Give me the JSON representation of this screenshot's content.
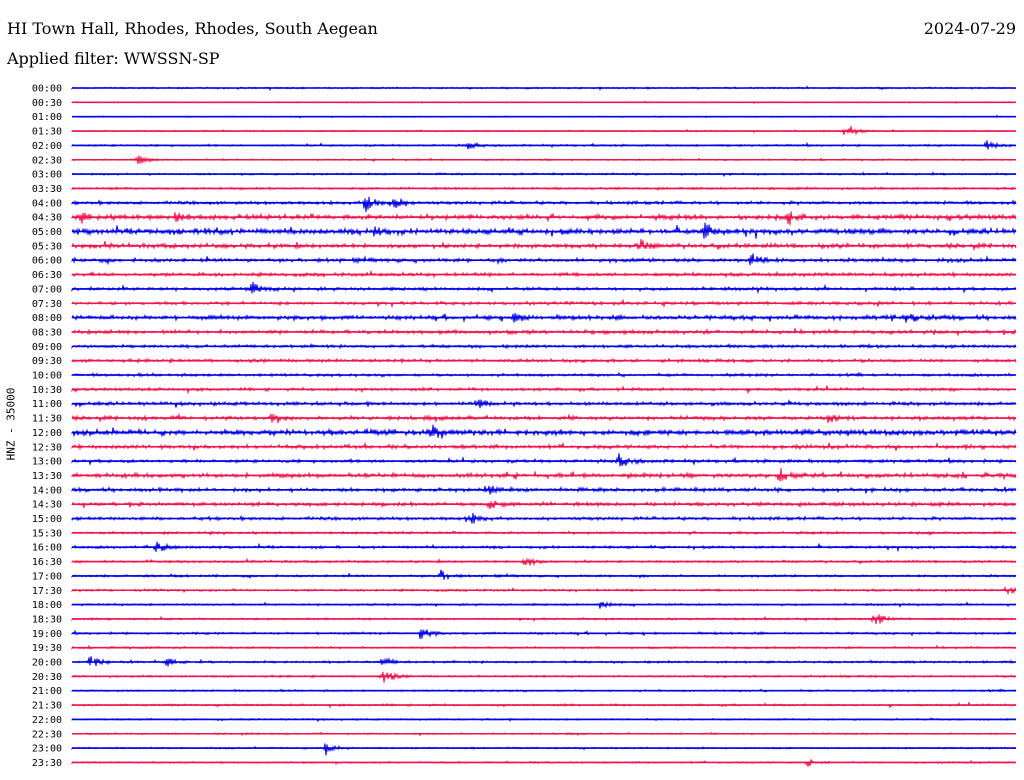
{
  "header": {
    "station": "HI Town Hall, Rhodes, Rhodes, South Aegean",
    "date": "2024-07-29",
    "filter": "Applied filter: WWSSN-SP"
  },
  "colors": {
    "a": "#0000e6",
    "b": "#f0144b"
  },
  "chart_data": {
    "type": "line",
    "ylabel": "HNZ - 35000",
    "row_labels": [
      "00:00",
      "00:30",
      "01:00",
      "01:30",
      "02:00",
      "02:30",
      "03:00",
      "03:30",
      "04:00",
      "04:30",
      "05:00",
      "05:30",
      "06:00",
      "06:30",
      "07:00",
      "07:30",
      "08:00",
      "08:30",
      "09:00",
      "09:30",
      "10:00",
      "10:30",
      "11:00",
      "11:30",
      "12:00",
      "12:30",
      "13:00",
      "13:30",
      "14:00",
      "14:30",
      "15:00",
      "15:30",
      "16:00",
      "16:30",
      "17:00",
      "17:30",
      "18:00",
      "18:30",
      "19:00",
      "19:30",
      "20:00",
      "20:30",
      "21:00",
      "21:30",
      "22:00",
      "22:30",
      "23:00",
      "23:30"
    ],
    "noise_level": [
      0.25,
      0.15,
      0.18,
      0.2,
      0.3,
      0.25,
      0.3,
      0.35,
      0.5,
      0.8,
      0.9,
      0.7,
      0.6,
      0.55,
      0.5,
      0.5,
      0.7,
      0.6,
      0.5,
      0.5,
      0.45,
      0.45,
      0.55,
      0.6,
      0.9,
      0.6,
      0.5,
      0.7,
      0.6,
      0.6,
      0.5,
      0.4,
      0.4,
      0.35,
      0.35,
      0.35,
      0.3,
      0.3,
      0.35,
      0.3,
      0.35,
      0.3,
      0.3,
      0.3,
      0.25,
      0.25,
      0.25,
      0.25
    ],
    "events": [
      {
        "row": 3,
        "x": 0.82,
        "amp": 9
      },
      {
        "row": 4,
        "x": 0.42,
        "amp": 4
      },
      {
        "row": 4,
        "x": 0.97,
        "amp": 6
      },
      {
        "row": 5,
        "x": 0.07,
        "amp": 5
      },
      {
        "row": 8,
        "x": 0.31,
        "amp": 11
      },
      {
        "row": 8,
        "x": 0.34,
        "amp": 9
      },
      {
        "row": 9,
        "x": 0.01,
        "amp": 5
      },
      {
        "row": 9,
        "x": 0.11,
        "amp": 6
      },
      {
        "row": 9,
        "x": 0.76,
        "amp": 6
      },
      {
        "row": 10,
        "x": 0.14,
        "amp": 5
      },
      {
        "row": 10,
        "x": 0.32,
        "amp": 5
      },
      {
        "row": 10,
        "x": 0.67,
        "amp": 8
      },
      {
        "row": 11,
        "x": 0.6,
        "amp": 6
      },
      {
        "row": 12,
        "x": 0.72,
        "amp": 8
      },
      {
        "row": 14,
        "x": 0.19,
        "amp": 8
      },
      {
        "row": 16,
        "x": 0.47,
        "amp": 6
      },
      {
        "row": 16,
        "x": 0.88,
        "amp": 7
      },
      {
        "row": 22,
        "x": 0.43,
        "amp": 6
      },
      {
        "row": 23,
        "x": 0.21,
        "amp": 4
      },
      {
        "row": 23,
        "x": 0.8,
        "amp": 6
      },
      {
        "row": 24,
        "x": 0.38,
        "amp": 7
      },
      {
        "row": 26,
        "x": 0.58,
        "amp": 8
      },
      {
        "row": 27,
        "x": 0.75,
        "amp": 6
      },
      {
        "row": 28,
        "x": 0.44,
        "amp": 7
      },
      {
        "row": 29,
        "x": 0.44,
        "amp": 6
      },
      {
        "row": 30,
        "x": 0.42,
        "amp": 7
      },
      {
        "row": 32,
        "x": 0.09,
        "amp": 6
      },
      {
        "row": 33,
        "x": 0.48,
        "amp": 6
      },
      {
        "row": 34,
        "x": 0.39,
        "amp": 6
      },
      {
        "row": 35,
        "x": 0.99,
        "amp": 5
      },
      {
        "row": 36,
        "x": 0.56,
        "amp": 4
      },
      {
        "row": 37,
        "x": 0.85,
        "amp": 8
      },
      {
        "row": 38,
        "x": 0.37,
        "amp": 7
      },
      {
        "row": 40,
        "x": 0.02,
        "amp": 7
      },
      {
        "row": 40,
        "x": 0.1,
        "amp": 5
      },
      {
        "row": 40,
        "x": 0.33,
        "amp": 5
      },
      {
        "row": 41,
        "x": 0.33,
        "amp": 8
      },
      {
        "row": 46,
        "x": 0.27,
        "amp": 9
      },
      {
        "row": 47,
        "x": 0.78,
        "amp": 5
      }
    ]
  }
}
